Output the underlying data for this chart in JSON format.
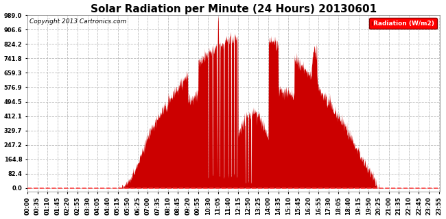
{
  "title": "Solar Radiation per Minute (24 Hours) 20130601",
  "copyright": "Copyright 2013 Cartronics.com",
  "legend_label": "Radiation (W/m2)",
  "background_color": "#ffffff",
  "plot_bg_color": "#ffffff",
  "bar_color": "#cc0000",
  "dashed_line_color": "#ff4444",
  "grid_color": "#bbbbbb",
  "yticks": [
    0.0,
    82.4,
    164.8,
    247.2,
    329.7,
    412.1,
    494.5,
    576.9,
    659.3,
    741.8,
    824.2,
    906.6,
    989.0
  ],
  "ymax": 989.0,
  "ymin": 0.0,
  "title_fontsize": 11,
  "axis_fontsize": 6,
  "copyright_fontsize": 6.5,
  "tick_step_minutes": 35
}
